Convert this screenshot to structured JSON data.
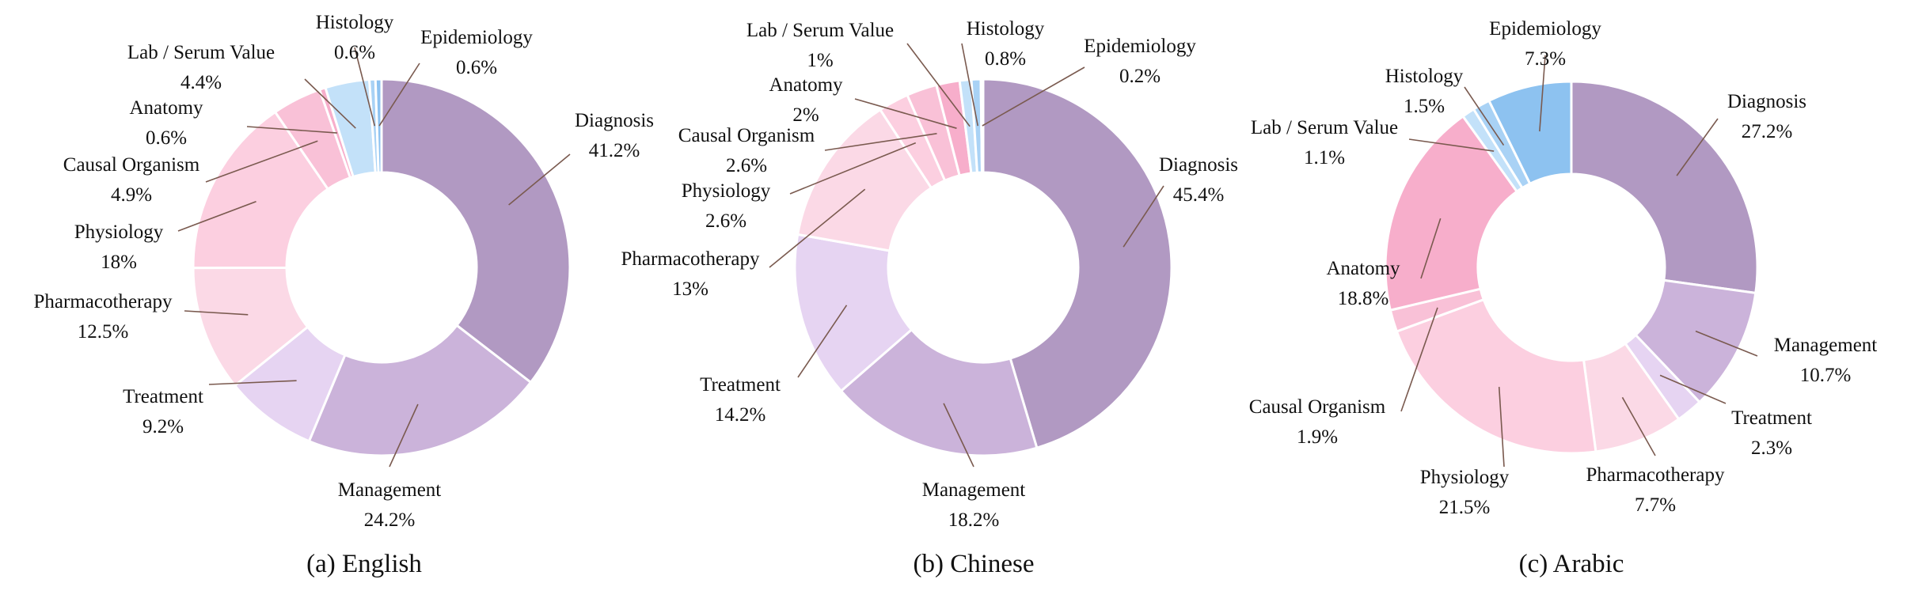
{
  "chart_data": [
    {
      "type": "pie",
      "caption": "(a) English",
      "slices": [
        {
          "label": "Diagnosis",
          "value": 41.2,
          "value_label": "41.2%",
          "color": "#B199C2"
        },
        {
          "label": "Management",
          "value": 24.2,
          "value_label": "24.2%",
          "color": "#CBB3DA"
        },
        {
          "label": "Treatment",
          "value": 9.2,
          "value_label": "9.2%",
          "color": "#E6D4F2"
        },
        {
          "label": "Pharmacotherapy",
          "value": 12.5,
          "value_label": "12.5%",
          "color": "#FBD9E6"
        },
        {
          "label": "Physiology",
          "value": 18,
          "value_label": "18%",
          "color": "#FCCFE0"
        },
        {
          "label": "Causal Organism",
          "value": 4.9,
          "value_label": "4.9%",
          "color": "#F9C1D7"
        },
        {
          "label": "Anatomy",
          "value": 0.6,
          "value_label": "0.6%",
          "color": "#F7AECB"
        },
        {
          "label": "Lab / Serum Value",
          "value": 4.4,
          "value_label": "4.4%",
          "color": "#C3E1F9"
        },
        {
          "label": "Histology",
          "value": 0.6,
          "value_label": "0.6%",
          "color": "#A9D2F5"
        },
        {
          "label": "Epidemiology",
          "value": 0.6,
          "value_label": "0.6%",
          "color": "#8DC2F0"
        }
      ]
    },
    {
      "type": "pie",
      "caption": "(b) Chinese",
      "slices": [
        {
          "label": "Diagnosis",
          "value": 45.4,
          "value_label": "45.4%",
          "color": "#B199C2"
        },
        {
          "label": "Management",
          "value": 18.2,
          "value_label": "18.2%",
          "color": "#CBB3DA"
        },
        {
          "label": "Treatment",
          "value": 14.2,
          "value_label": "14.2%",
          "color": "#E6D4F2"
        },
        {
          "label": "Pharmacotherapy",
          "value": 13,
          "value_label": "13%",
          "color": "#FBD9E6"
        },
        {
          "label": "Physiology",
          "value": 2.6,
          "value_label": "2.6%",
          "color": "#FCCFE0"
        },
        {
          "label": "Causal Organism",
          "value": 2.6,
          "value_label": "2.6%",
          "color": "#F9C1D7"
        },
        {
          "label": "Anatomy",
          "value": 2,
          "value_label": "2%",
          "color": "#F7AECB"
        },
        {
          "label": "Lab / Serum Value",
          "value": 1,
          "value_label": "1%",
          "color": "#C3E1F9"
        },
        {
          "label": "Histology",
          "value": 0.8,
          "value_label": "0.8%",
          "color": "#A9D2F5"
        },
        {
          "label": "Epidemiology",
          "value": 0.2,
          "value_label": "0.2%",
          "color": "#8DC2F0"
        }
      ]
    },
    {
      "type": "pie",
      "caption": "(c) Arabic",
      "slices": [
        {
          "label": "Diagnosis",
          "value": 27.2,
          "value_label": "27.2%",
          "color": "#B199C2"
        },
        {
          "label": "Management",
          "value": 10.7,
          "value_label": "10.7%",
          "color": "#CBB3DA"
        },
        {
          "label": "Treatment",
          "value": 2.3,
          "value_label": "2.3%",
          "color": "#E6D4F2"
        },
        {
          "label": "Pharmacotherapy",
          "value": 7.7,
          "value_label": "7.7%",
          "color": "#FBD9E6"
        },
        {
          "label": "Physiology",
          "value": 21.5,
          "value_label": "21.5%",
          "color": "#FCCFE0"
        },
        {
          "label": "Causal Organism",
          "value": 1.9,
          "value_label": "1.9%",
          "color": "#F9C1D7"
        },
        {
          "label": "Anatomy",
          "value": 18.8,
          "value_label": "18.8%",
          "color": "#F7AECB"
        },
        {
          "label": "Lab / Serum Value",
          "value": 1.1,
          "value_label": "1.1%",
          "color": "#C3E1F9"
        },
        {
          "label": "Histology",
          "value": 1.5,
          "value_label": "1.5%",
          "color": "#A9D2F5"
        },
        {
          "label": "Epidemiology",
          "value": 7.3,
          "value_label": "7.3%",
          "color": "#8DC2F0"
        }
      ]
    }
  ]
}
